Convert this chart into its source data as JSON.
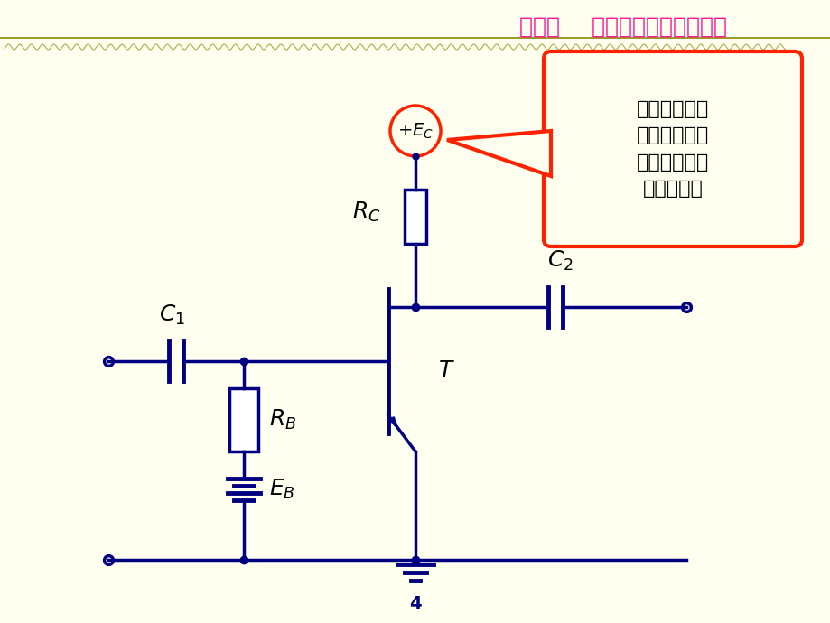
{
  "bg_color": "#FFFFF0",
  "title_text": "第二节    单管共发射极放大电路",
  "title_color": "#FF1493",
  "title_fontsize": 18,
  "page_num": "4",
  "line_color": "#000080",
  "line_width": 2.5,
  "component_lw": 2.5,
  "callout_text": "集电极电源，\n为电路提供能\n量。并保证集\n电结反偏。",
  "callout_color": "#FF2200",
  "callout_bg": "#FFFFF0",
  "callout_fontsize": 16
}
